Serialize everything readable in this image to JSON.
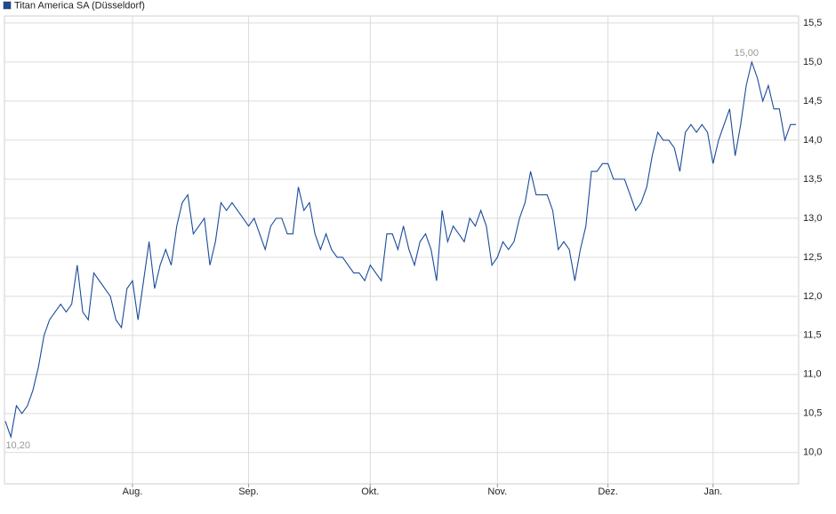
{
  "chart_data": {
    "type": "line",
    "series": [
      {
        "name": "Titan America SA (Düsseldorf)",
        "color": "#1a4c9a",
        "values": [
          10.4,
          10.2,
          10.6,
          10.5,
          10.6,
          10.8,
          11.1,
          11.5,
          11.7,
          11.8,
          11.9,
          11.8,
          11.9,
          12.4,
          11.8,
          11.7,
          12.3,
          12.2,
          12.1,
          12.0,
          11.7,
          11.6,
          12.1,
          12.2,
          11.7,
          12.2,
          12.7,
          12.1,
          12.4,
          12.6,
          12.4,
          12.9,
          13.2,
          13.3,
          12.8,
          12.9,
          13.0,
          12.4,
          12.7,
          13.2,
          13.1,
          13.2,
          13.1,
          13.0,
          12.9,
          13.0,
          12.8,
          12.6,
          12.9,
          13.0,
          13.0,
          12.8,
          12.8,
          13.4,
          13.1,
          13.2,
          12.8,
          12.6,
          12.8,
          12.6,
          12.5,
          12.5,
          12.4,
          12.3,
          12.3,
          12.2,
          12.4,
          12.3,
          12.2,
          12.8,
          12.8,
          12.6,
          12.9,
          12.6,
          12.4,
          12.7,
          12.8,
          12.6,
          12.2,
          13.1,
          12.7,
          12.9,
          12.8,
          12.7,
          13.0,
          12.9,
          13.1,
          12.9,
          12.4,
          12.5,
          12.7,
          12.6,
          12.7,
          13.0,
          13.2,
          13.6,
          13.3,
          13.3,
          13.3,
          13.1,
          12.6,
          12.7,
          12.6,
          12.2,
          12.6,
          12.9,
          13.6,
          13.6,
          13.7,
          13.7,
          13.5,
          13.5,
          13.5,
          13.3,
          13.1,
          13.2,
          13.4,
          13.8,
          14.1,
          14.0,
          14.0,
          13.9,
          13.6,
          14.1,
          14.2,
          14.1,
          14.2,
          14.1,
          13.7,
          14.0,
          14.2,
          14.4,
          13.8,
          14.2,
          14.7,
          15.0,
          14.8,
          14.5,
          14.7,
          14.4,
          14.4,
          14.0,
          14.2,
          14.2
        ],
        "value_labels": [
          null,
          "10,20",
          null,
          null,
          null,
          null,
          null,
          null,
          null,
          null,
          null,
          null,
          null,
          null,
          null,
          null,
          null,
          null,
          null,
          null,
          null,
          null,
          null,
          null,
          null,
          null,
          null,
          null,
          null,
          null,
          null,
          null,
          null,
          null,
          null,
          null,
          null,
          null,
          null,
          null,
          null,
          null,
          null,
          null,
          null,
          null,
          null,
          null,
          null,
          null,
          null,
          null,
          null,
          null,
          null,
          null,
          null,
          null,
          null,
          null,
          null,
          null,
          null,
          null,
          null,
          null,
          null,
          null,
          null,
          null,
          null,
          null,
          null,
          null,
          null,
          null,
          null,
          null,
          null,
          null,
          null,
          null,
          null,
          null,
          null,
          null,
          null,
          null,
          null,
          null,
          null,
          null,
          null,
          null,
          null,
          null,
          null,
          null,
          null,
          null,
          null,
          null,
          null,
          null,
          null,
          null,
          null,
          null,
          null,
          null,
          null,
          null,
          null,
          null,
          null,
          null,
          null,
          null,
          null,
          null,
          null,
          null,
          null,
          null,
          null,
          null,
          null,
          null,
          null,
          null,
          null,
          null,
          null,
          null,
          null,
          "15,00",
          null,
          null,
          null,
          null,
          null,
          null,
          null,
          null
        ]
      }
    ],
    "categories": [
      null,
      null,
      null,
      null,
      null,
      null,
      null,
      null,
      null,
      null,
      null,
      null,
      null,
      null,
      null,
      null,
      null,
      null,
      null,
      null,
      null,
      null,
      null,
      "Aug.",
      null,
      null,
      null,
      null,
      null,
      null,
      null,
      null,
      null,
      null,
      null,
      null,
      null,
      null,
      null,
      null,
      null,
      null,
      null,
      null,
      "Sep.",
      null,
      null,
      null,
      null,
      null,
      null,
      null,
      null,
      null,
      null,
      null,
      null,
      null,
      null,
      null,
      null,
      null,
      null,
      null,
      null,
      null,
      "Okt.",
      null,
      null,
      null,
      null,
      null,
      null,
      null,
      null,
      null,
      null,
      null,
      null,
      null,
      null,
      null,
      null,
      null,
      null,
      null,
      null,
      null,
      null,
      "Nov.",
      null,
      null,
      null,
      null,
      null,
      null,
      null,
      null,
      null,
      null,
      null,
      null,
      null,
      null,
      null,
      null,
      null,
      null,
      null,
      "Dez.",
      null,
      null,
      null,
      null,
      null,
      null,
      null,
      null,
      null,
      null,
      null,
      null,
      null,
      null,
      null,
      null,
      null,
      null,
      "Jan.",
      null,
      null,
      null,
      null,
      null,
      null,
      null,
      null,
      null,
      null,
      null,
      null,
      null,
      null,
      null
    ],
    "ylim": [
      9.6,
      15.59
    ],
    "yticks": [
      {
        "value": 10.0,
        "label": "10,0"
      },
      {
        "value": 10.5,
        "label": "10,5"
      },
      {
        "value": 11.0,
        "label": "11,0"
      },
      {
        "value": 11.5,
        "label": "11,5"
      },
      {
        "value": 12.0,
        "label": "12,0"
      },
      {
        "value": 12.5,
        "label": "12,5"
      },
      {
        "value": 13.0,
        "label": "13,0"
      },
      {
        "value": 13.5,
        "label": "13,5"
      },
      {
        "value": 14.0,
        "label": "14,0"
      },
      {
        "value": 14.5,
        "label": "14,5"
      },
      {
        "value": 15.0,
        "label": "15,0"
      },
      {
        "value": 15.5,
        "label": "15,5"
      }
    ],
    "grid": true,
    "legend": "top-left"
  }
}
